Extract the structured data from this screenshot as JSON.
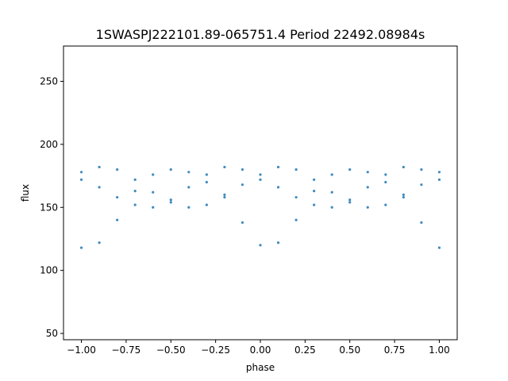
{
  "chart_data": {
    "type": "scatter",
    "title": "1SWASPJ222101.89-065751.4 Period 22492.08984s",
    "xlabel": "phase",
    "ylabel": "flux",
    "xlim": [
      -1.1,
      1.1
    ],
    "ylim": [
      45,
      278
    ],
    "xticks": [
      -1.0,
      -0.75,
      -0.5,
      -0.25,
      0.0,
      0.25,
      0.5,
      0.75,
      1.0
    ],
    "xtick_labels": [
      "−1.00",
      "−0.75",
      "−0.50",
      "−0.25",
      "0.00",
      "0.25",
      "0.50",
      "0.75",
      "1.00"
    ],
    "yticks": [
      50,
      100,
      150,
      200,
      250
    ],
    "ytick_labels": [
      "50",
      "100",
      "150",
      "200",
      "250"
    ],
    "grid": false,
    "legend": "none",
    "marker_color": "#1f77b4",
    "series": [
      {
        "x": [
          -1.0,
          -0.9,
          -0.8,
          -0.7,
          -0.6,
          -0.5,
          -0.4,
          -0.3,
          -0.2,
          -0.1,
          0.0,
          0.1,
          0.2,
          0.3,
          0.4,
          0.5,
          0.6,
          0.7,
          0.8,
          0.9,
          1.0
        ],
        "y": [
          118,
          122,
          140,
          163,
          176,
          180,
          178,
          170,
          160,
          138,
          120,
          122,
          140,
          163,
          176,
          180,
          178,
          170,
          160,
          138,
          118
        ]
      },
      {
        "x": [
          -1.0,
          -0.9,
          -0.8,
          -0.7,
          -0.6,
          -0.5,
          -0.4,
          -0.3,
          -0.2,
          -0.1,
          0.0,
          0.1,
          0.2,
          0.3,
          0.4,
          0.5,
          0.6,
          0.7,
          0.8,
          0.9,
          1.0
        ],
        "y": [
          172,
          166,
          158,
          152,
          150,
          156,
          166,
          176,
          182,
          180,
          172,
          166,
          158,
          152,
          150,
          156,
          166,
          176,
          182,
          180,
          172
        ]
      },
      {
        "x": [
          -1.0,
          -0.9,
          -0.8,
          -0.7,
          -0.6,
          -0.5,
          -0.4,
          -0.3,
          -0.2,
          -0.1,
          0.0,
          0.1,
          0.2,
          0.3,
          0.4,
          0.5,
          0.6,
          0.7,
          0.8,
          0.9,
          1.0
        ],
        "y": [
          178,
          182,
          180,
          172,
          162,
          154,
          150,
          152,
          158,
          168,
          176,
          182,
          180,
          172,
          162,
          154,
          150,
          152,
          158,
          168,
          178
        ]
      }
    ]
  }
}
